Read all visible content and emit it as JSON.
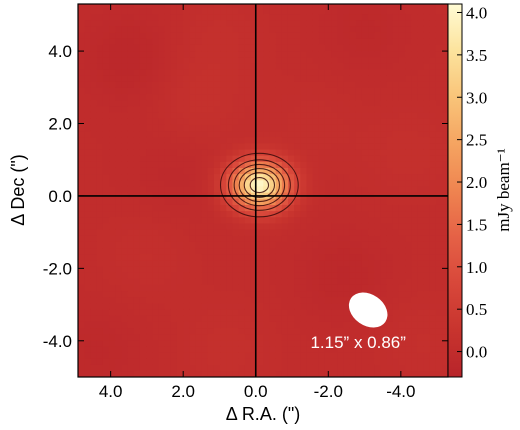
{
  "chart_data": {
    "type": "heatmap",
    "title": "",
    "xlabel": "Δ R.A. (\")",
    "ylabel": "Δ Dec (\")",
    "xlim": [
      4.9,
      -5.3
    ],
    "ylim": [
      -5.0,
      5.3
    ],
    "xticks": [
      4.0,
      2.0,
      0.0,
      -2.0,
      -4.0
    ],
    "xtick_labels": [
      "4.0",
      "2.0",
      "0.0",
      "-2.0",
      "-4.0"
    ],
    "yticks": [
      4.0,
      2.0,
      0.0,
      -2.0,
      -4.0
    ],
    "ytick_labels": [
      "4.0",
      "2.0",
      "0.0",
      "-2.0",
      "-4.0"
    ],
    "crosshair": {
      "x": 0.0,
      "y": 0.0
    },
    "source": {
      "x": -0.1,
      "y": 0.3,
      "peak": 4.0,
      "sigma_x": 0.55,
      "sigma_y": 0.45
    },
    "background_level": 0.0,
    "contour_levels": [
      0.6,
      1.2,
      1.8,
      2.4,
      3.0,
      3.6
    ],
    "colorbar": {
      "label": "mJy beam⁻¹",
      "range": [
        -0.3,
        4.1
      ],
      "ticks": [
        0.0,
        0.5,
        1.0,
        1.5,
        2.0,
        2.5,
        3.0,
        3.5,
        4.0
      ],
      "tick_labels": [
        "0.0",
        "0.5",
        "1.0",
        "1.5",
        "2.0",
        "2.5",
        "3.0",
        "3.5",
        "4.0"
      ],
      "colors": [
        "#b8242a",
        "#c8342e",
        "#d8473a",
        "#e56146",
        "#ef8450",
        "#f5a461",
        "#f9c479",
        "#fce39d",
        "#fffbd4"
      ]
    },
    "beam": {
      "major": 1.15,
      "minor": 0.86,
      "x": -3.1,
      "y": -3.15,
      "label": "1.15” x 0.86”"
    }
  }
}
